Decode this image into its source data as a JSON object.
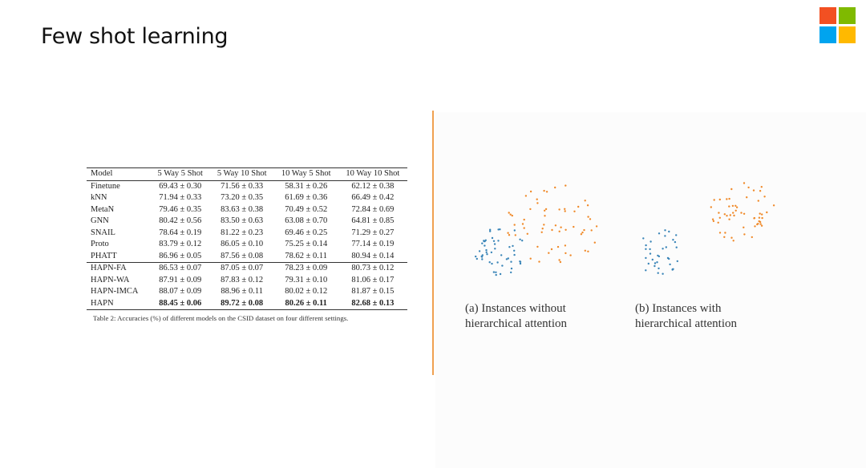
{
  "slide": {
    "title": "Few shot learning"
  },
  "logo": {
    "colors": [
      "#f25022",
      "#7fba00",
      "#00a4ef",
      "#ffb900"
    ]
  },
  "table": {
    "headers": [
      "Model",
      "5 Way 5 Shot",
      "5 Way 10 Shot",
      "10 Way 5 Shot",
      "10 Way 10 Shot"
    ],
    "rows": [
      [
        "Finetune",
        "69.43 ± 0.30",
        "71.56 ± 0.33",
        "58.31 ± 0.26",
        "62.12 ± 0.38"
      ],
      [
        "kNN",
        "71.94 ± 0.33",
        "73.20 ± 0.35",
        "61.69 ± 0.36",
        "66.49 ± 0.42"
      ],
      [
        "MetaN",
        "79.46 ± 0.35",
        "83.63 ± 0.38",
        "70.49 ± 0.52",
        "72.84 ± 0.69"
      ],
      [
        "GNN",
        "80.42 ± 0.56",
        "83.50 ± 0.63",
        "63.08 ± 0.70",
        "64.81 ± 0.85"
      ],
      [
        "SNAIL",
        "78.64 ± 0.19",
        "81.22 ± 0.23",
        "69.46 ± 0.25",
        "71.29 ± 0.27"
      ],
      [
        "Proto",
        "83.79 ± 0.12",
        "86.05 ± 0.10",
        "75.25 ± 0.14",
        "77.14 ± 0.19"
      ],
      [
        "PHATT",
        "86.96 ± 0.05",
        "87.56 ± 0.08",
        "78.62 ± 0.11",
        "80.94 ± 0.14"
      ],
      [
        "HAPN-FA",
        "86.53 ± 0.07",
        "87.05 ± 0.07",
        "78.23 ± 0.09",
        "80.73 ± 0.12"
      ],
      [
        "HAPN-WA",
        "87.91 ± 0.09",
        "87.83 ± 0.12",
        "79.31 ± 0.10",
        "81.06 ± 0.17"
      ],
      [
        "HAPN-IMCA",
        "88.07 ± 0.09",
        "88.96 ± 0.11",
        "80.02 ± 0.12",
        "81.87 ± 0.15"
      ],
      [
        "HAPN",
        "88.45 ± 0.06",
        "89.72 ± 0.08",
        "80.26 ± 0.11",
        "82.68 ± 0.13"
      ]
    ],
    "caption": "Table 2:  Accuracies (%) of different models on the CSID dataset on four different settings."
  },
  "figure": {
    "colors": {
      "class_1": "#3a85b8",
      "class_2": "#f08a2a",
      "divider": "#f0a050"
    },
    "panels": [
      {
        "caption_line1": "(a) Instances without",
        "caption_line2": "hierarchical attention"
      },
      {
        "caption_line1": "(b) Instances with",
        "caption_line2": "hierarchical attention"
      }
    ]
  }
}
